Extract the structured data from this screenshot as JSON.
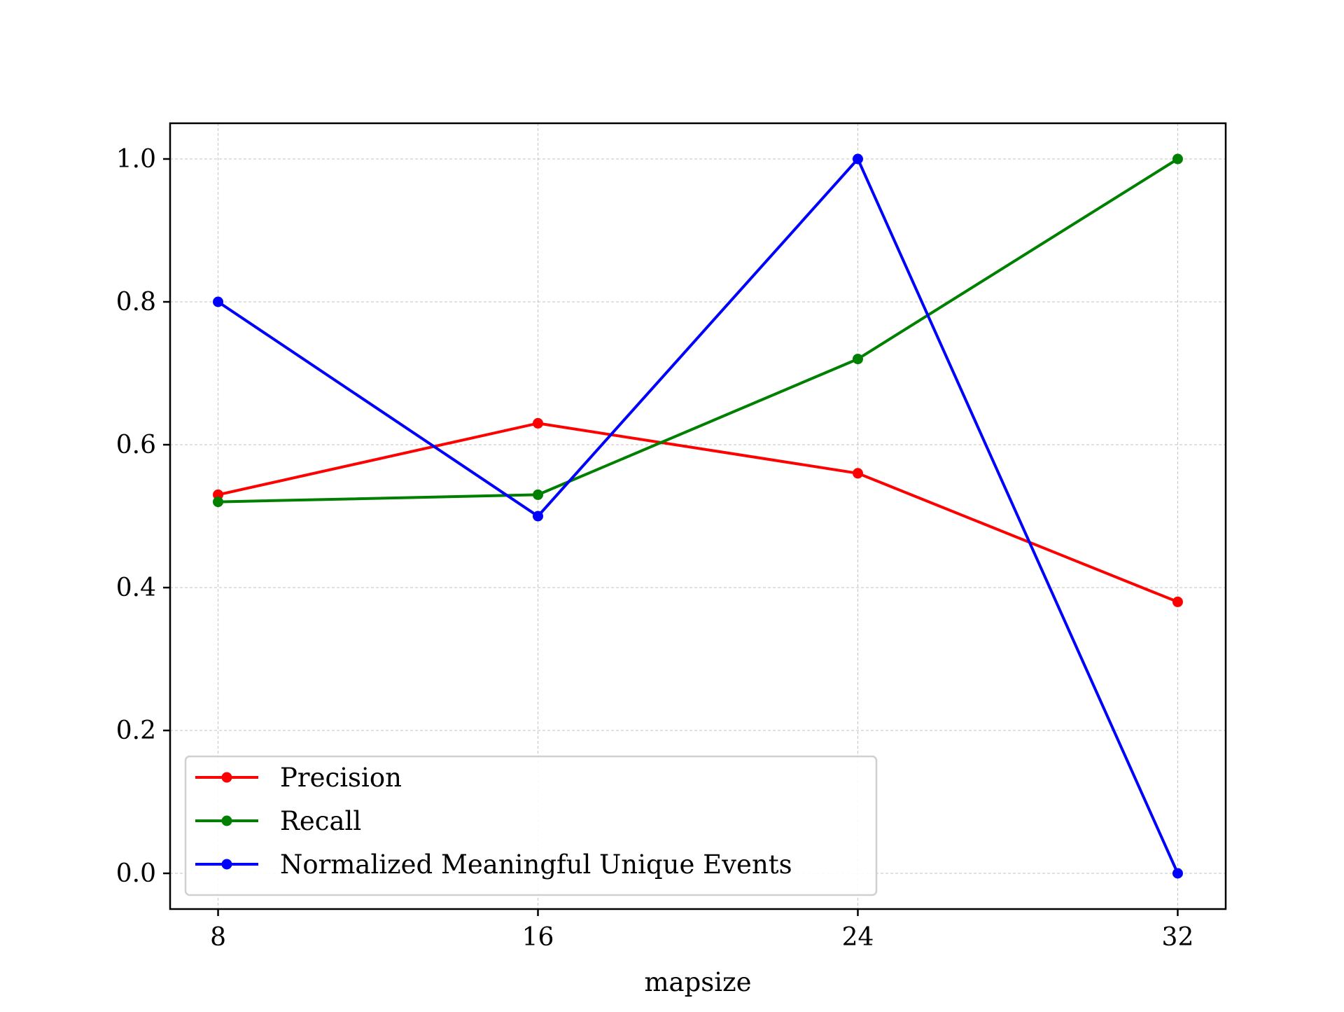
{
  "chart_data": {
    "type": "line",
    "xlabel": "mapsize",
    "ylabel": "",
    "x": [
      8,
      16,
      24,
      32
    ],
    "xticks": [
      "8",
      "16",
      "24",
      "32"
    ],
    "yticks": [
      "0.0",
      "0.2",
      "0.4",
      "0.6",
      "0.8",
      "1.0"
    ],
    "xlim": [
      6.8,
      33.2
    ],
    "ylim": [
      -0.05,
      1.05
    ],
    "grid": true,
    "legend_position": "lower-left",
    "series": [
      {
        "name": "Precision",
        "color": "#ff0000",
        "values": [
          0.53,
          0.63,
          0.56,
          0.38
        ]
      },
      {
        "name": "Recall",
        "color": "#008000",
        "values": [
          0.52,
          0.53,
          0.72,
          1.0
        ]
      },
      {
        "name": "Normalized Meaningful Unique Events",
        "color": "#0000ff",
        "values": [
          0.8,
          0.5,
          1.0,
          0.0
        ]
      }
    ]
  }
}
